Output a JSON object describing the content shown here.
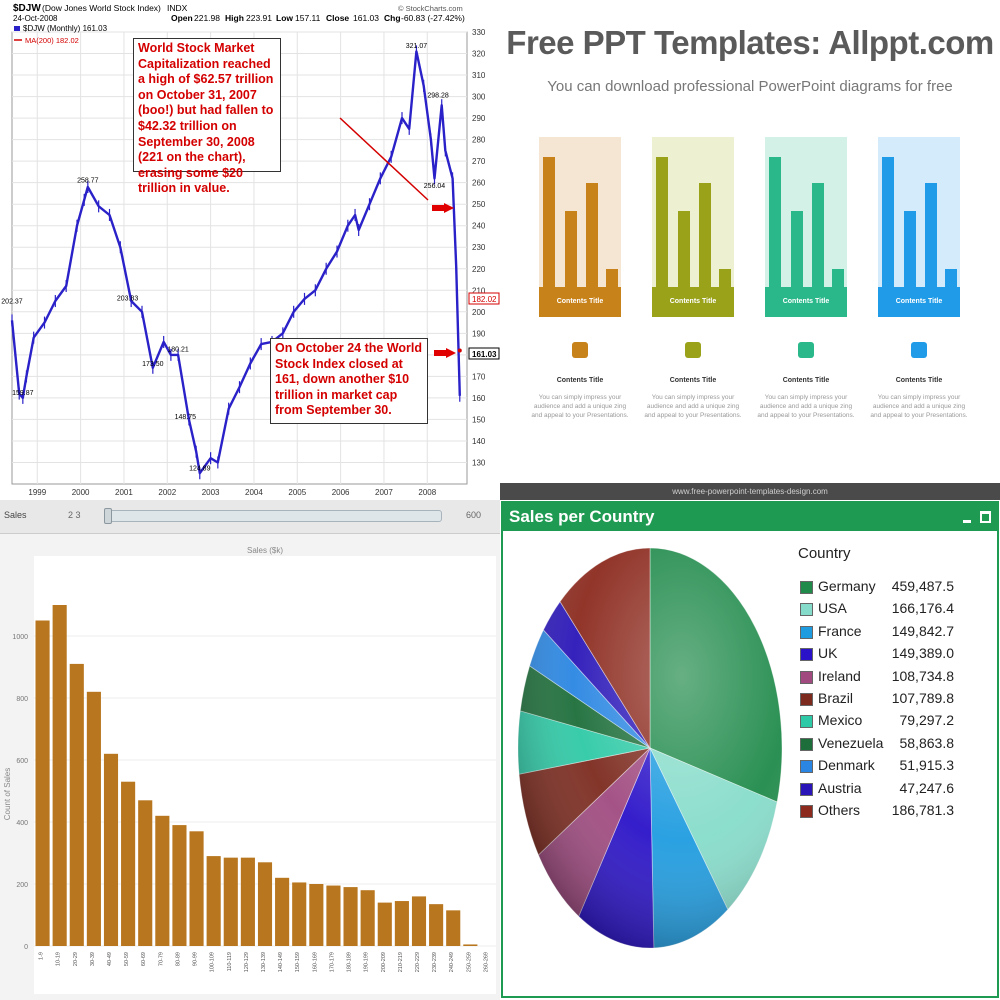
{
  "stock_panel": {
    "symbol": "$DJW",
    "index_name": "(Dow Jones World Stock Index)",
    "exchange": "INDX",
    "date": "24-Oct-2008",
    "series_label": "$DJW (Monthly) 161.03",
    "ma_label": "MA(200) 182.02",
    "open_label": "Open",
    "open_value": "221.98",
    "high_label": "High",
    "high_value": "223.91",
    "low_label": "Low",
    "low_value": "157.11",
    "close_label": "Close",
    "close_value": "161.03",
    "chg_label": "Chg",
    "chg_value": "-60.83 (-27.42%)",
    "source": "© StockCharts.com",
    "annotation_1": "World Stock Market Capitalization reached a high of $62.57 trillion on October 31, 2007 (boo!) but had fallen to $42.32 trillion on September  30, 2008 (221 on the chart), erasing some $20 trillion in value.",
    "annotation_2": "On October 24 the World Stock Index closed at 161, down another $10 trillion in market cap from September 30.",
    "price_tag_ma": "182.02",
    "price_tag_close": "161.03"
  },
  "template_panel": {
    "title": "Free PPT Templates: Allppt.com",
    "subtitle": "You can download  professional  PowerPoint  diagrams  for free",
    "footer": "www.free-powerpoint-templates-design.com",
    "cards": [
      {
        "band": "Contents Title",
        "color": "#c8821a",
        "light": "#f4e6d2",
        "icon": "envelope-icon",
        "title": "Contents Title",
        "text": "You can simply impress your audience and add a unique zing and appeal to your Presentations."
      },
      {
        "band": "Contents Title",
        "color": "#9aa21a",
        "light": "#eef0d2",
        "icon": "bar-chart-icon",
        "title": "Contents Title",
        "text": "You can simply impress your audience and add a unique zing and appeal to your Presentations."
      },
      {
        "band": "Contents Title",
        "color": "#2ab88a",
        "light": "#d4f1e7",
        "icon": "book-icon",
        "title": "Contents Title",
        "text": "You can simply impress your audience and add a unique zing and appeal to your Presentations."
      },
      {
        "band": "Contents Title",
        "color": "#1f9be8",
        "light": "#d3ebfa",
        "icon": "grid-icon",
        "title": "Contents Title",
        "text": "You can simply impress your audience and add a unique zing and appeal to your Presentations."
      }
    ]
  },
  "sales_panel": {
    "tab": "Sales",
    "range_min": "2 3",
    "range_max": "600"
  },
  "country_panel": {
    "title": "Sales per Country",
    "legend_title": "Country"
  },
  "chart_data": [
    {
      "type": "line",
      "title": "$DJW (Dow Jones World Stock Index)",
      "x_type": "date",
      "xlim": [
        "1998-06",
        "2008-12"
      ],
      "ylim": [
        120,
        330
      ],
      "yaxis_side": "right",
      "yticks": [
        130,
        140,
        150,
        160,
        170,
        180,
        190,
        200,
        210,
        220,
        230,
        240,
        250,
        260,
        270,
        280,
        290,
        300,
        310,
        320,
        330
      ],
      "xticks": [
        "1999",
        "2000",
        "2001",
        "2002",
        "2003",
        "2004",
        "2005",
        "2006",
        "2007",
        "2008"
      ],
      "grid": true,
      "series": [
        {
          "name": "$DJW (Monthly)",
          "color": "#2a21c8",
          "points": [
            [
              "1998-06",
              196
            ],
            [
              "1998-08",
              162
            ],
            [
              "1998-09",
              160
            ],
            [
              "1998-10",
              170
            ],
            [
              "1998-12",
              188
            ],
            [
              "1999-03",
              195
            ],
            [
              "1999-06",
              205
            ],
            [
              "1999-09",
              212
            ],
            [
              "1999-12",
              240
            ],
            [
              "2000-02",
              252
            ],
            [
              "2000-03",
              258
            ],
            [
              "2000-06",
              249
            ],
            [
              "2000-09",
              245
            ],
            [
              "2000-12",
              230
            ],
            [
              "2001-03",
              205
            ],
            [
              "2001-06",
              200
            ],
            [
              "2001-09",
              174
            ],
            [
              "2001-12",
              186
            ],
            [
              "2002-02",
              180
            ],
            [
              "2002-04",
              180
            ],
            [
              "2002-07",
              150
            ],
            [
              "2002-09",
              135
            ],
            [
              "2002-10",
              125
            ],
            [
              "2003-01",
              132
            ],
            [
              "2003-03",
              130
            ],
            [
              "2003-06",
              155
            ],
            [
              "2003-09",
              165
            ],
            [
              "2003-12",
              176
            ],
            [
              "2004-03",
              185
            ],
            [
              "2004-06",
              186
            ],
            [
              "2004-09",
              190
            ],
            [
              "2004-12",
              200
            ],
            [
              "2005-03",
              206
            ],
            [
              "2005-06",
              210
            ],
            [
              "2005-09",
              220
            ],
            [
              "2005-12",
              228
            ],
            [
              "2006-03",
              240
            ],
            [
              "2006-05",
              245
            ],
            [
              "2006-06",
              238
            ],
            [
              "2006-09",
              250
            ],
            [
              "2006-12",
              262
            ],
            [
              "2007-03",
              272
            ],
            [
              "2007-06",
              290
            ],
            [
              "2007-08",
              285
            ],
            [
              "2007-10",
              321
            ],
            [
              "2007-12",
              305
            ],
            [
              "2008-02",
              280
            ],
            [
              "2008-03",
              262
            ],
            [
              "2008-05",
              296
            ],
            [
              "2008-06",
              275
            ],
            [
              "2008-08",
              262
            ],
            [
              "2008-09",
              221
            ],
            [
              "2008-10",
              161
            ]
          ]
        },
        {
          "name": "MA(200)",
          "color": "#d40000",
          "points": [
            [
              "2008-10",
              182.02
            ]
          ]
        }
      ],
      "labels": [
        {
          "x": "1998-06",
          "y": 202.37,
          "text": "202.37"
        },
        {
          "x": "1998-09",
          "y": 159.87,
          "text": "159.87"
        },
        {
          "x": "2000-03",
          "y": 258.77,
          "text": "258.77"
        },
        {
          "x": "2001-02",
          "y": 203.83,
          "text": "203.83"
        },
        {
          "x": "2001-09",
          "y": 173.5,
          "text": "173.50"
        },
        {
          "x": "2002-04",
          "y": 180.21,
          "text": "180.21"
        },
        {
          "x": "2002-06",
          "y": 148.75,
          "text": "148.75"
        },
        {
          "x": "2002-10",
          "y": 124.89,
          "text": "124.89"
        },
        {
          "x": "2007-10",
          "y": 321.07,
          "text": "321.07"
        },
        {
          "x": "2008-04",
          "y": 298.28,
          "text": "298.28"
        },
        {
          "x": "2008-03",
          "y": 256.04,
          "text": "256.04"
        }
      ]
    },
    {
      "type": "bar",
      "title": "Sales ($k)",
      "ylabel": "Count of Sales",
      "ylim": [
        0,
        1200
      ],
      "yticks": [
        0,
        200,
        400,
        600,
        800,
        1000
      ],
      "categories": [
        "1-9",
        "10-19",
        "20-29",
        "30-39",
        "40-49",
        "50-59",
        "60-69",
        "70-79",
        "80-89",
        "90-99",
        "100-109",
        "110-119",
        "120-129",
        "130-139",
        "140-149",
        "150-159",
        "160-169",
        "170-179",
        "180-189",
        "190-199",
        "200-209",
        "210-219",
        "220-229",
        "230-239",
        "240-249",
        "250-259",
        "260-269"
      ],
      "values": [
        1050,
        1100,
        910,
        820,
        620,
        530,
        470,
        420,
        390,
        370,
        290,
        285,
        285,
        270,
        220,
        205,
        200,
        195,
        190,
        180,
        140,
        145,
        160,
        135,
        115,
        5,
        0
      ],
      "color": "#b8761e"
    },
    {
      "type": "pie",
      "title": "Sales per Country",
      "legend_title": "Country",
      "legend_position": "right",
      "slices": [
        {
          "label": "Germany",
          "value": 459487.5,
          "display": "459,487.5",
          "color": "#1f8a4a"
        },
        {
          "label": "USA",
          "value": 166176.4,
          "display": "166,176.4",
          "color": "#86dcca"
        },
        {
          "label": "France",
          "value": 149842.7,
          "display": "149,842.7",
          "color": "#1f9ce0"
        },
        {
          "label": "UK",
          "value": 149389.0,
          "display": "149,389.0",
          "color": "#2a12c8"
        },
        {
          "label": "Ireland",
          "value": 108734.8,
          "display": "108,734.8",
          "color": "#a04a80"
        },
        {
          "label": "Brazil",
          "value": 107789.8,
          "display": "107,789.8",
          "color": "#7c2a1e"
        },
        {
          "label": "Mexico",
          "value": 79297.2,
          "display": "79,297.2",
          "color": "#2ec9a6"
        },
        {
          "label": "Venezuela",
          "value": 58863.8,
          "display": "58,863.8",
          "color": "#1d6e3a"
        },
        {
          "label": "Denmark",
          "value": 51915.3,
          "display": "51,915.3",
          "color": "#2a86e2"
        },
        {
          "label": "Austria",
          "value": 47247.6,
          "display": "47,247.6",
          "color": "#2a16b8"
        },
        {
          "label": "Others",
          "value": 186781.3,
          "display": "186,781.3",
          "color": "#8c2a1e"
        }
      ]
    }
  ]
}
